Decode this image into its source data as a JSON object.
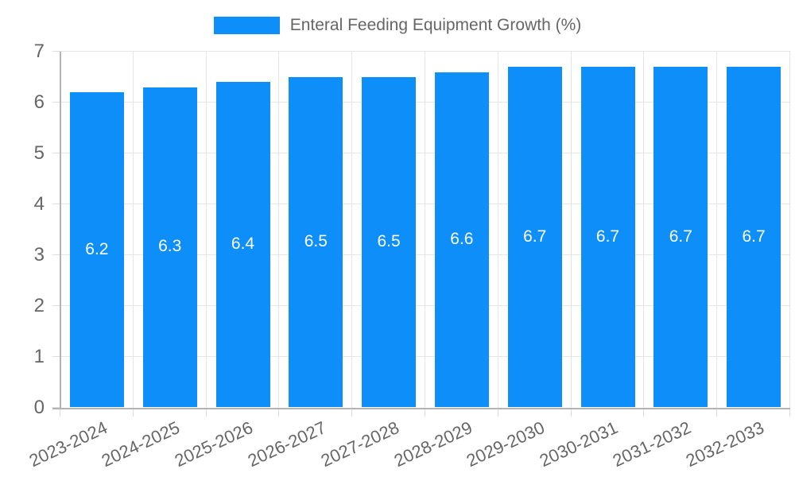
{
  "chart_data": {
    "type": "bar",
    "title": "Enteral Feeding Equipment Growth (%)",
    "categories": [
      "2023-2024",
      "2024-2025",
      "2025-2026",
      "2026-2027",
      "2027-2028",
      "2028-2029",
      "2029-2030",
      "2030-2031",
      "2031-2032",
      "2032-2033"
    ],
    "values": [
      6.2,
      6.3,
      6.4,
      6.5,
      6.5,
      6.6,
      6.7,
      6.7,
      6.7,
      6.7
    ],
    "bar_labels": [
      "6.2",
      "6.3",
      "6.4",
      "6.5",
      "6.5",
      "6.6",
      "6.7",
      "6.7",
      "6.7",
      "6.7"
    ],
    "xlabel": "",
    "ylabel": "",
    "ylim": [
      0,
      7
    ],
    "y_ticks": [
      0,
      1,
      2,
      3,
      4,
      5,
      6,
      7
    ],
    "grid": true,
    "legend_position": "top",
    "x_label_rotation_deg": -25,
    "colors": {
      "bar": "#0d8ef8",
      "bar_label_text": "#ffffff",
      "grid_line": "#e6e6e6",
      "tick_mark": "#dcdcdc",
      "axis_line": "#b3b3b3",
      "tick_label_text": "#666666",
      "legend_text": "#666666",
      "background": "#ffffff"
    }
  }
}
